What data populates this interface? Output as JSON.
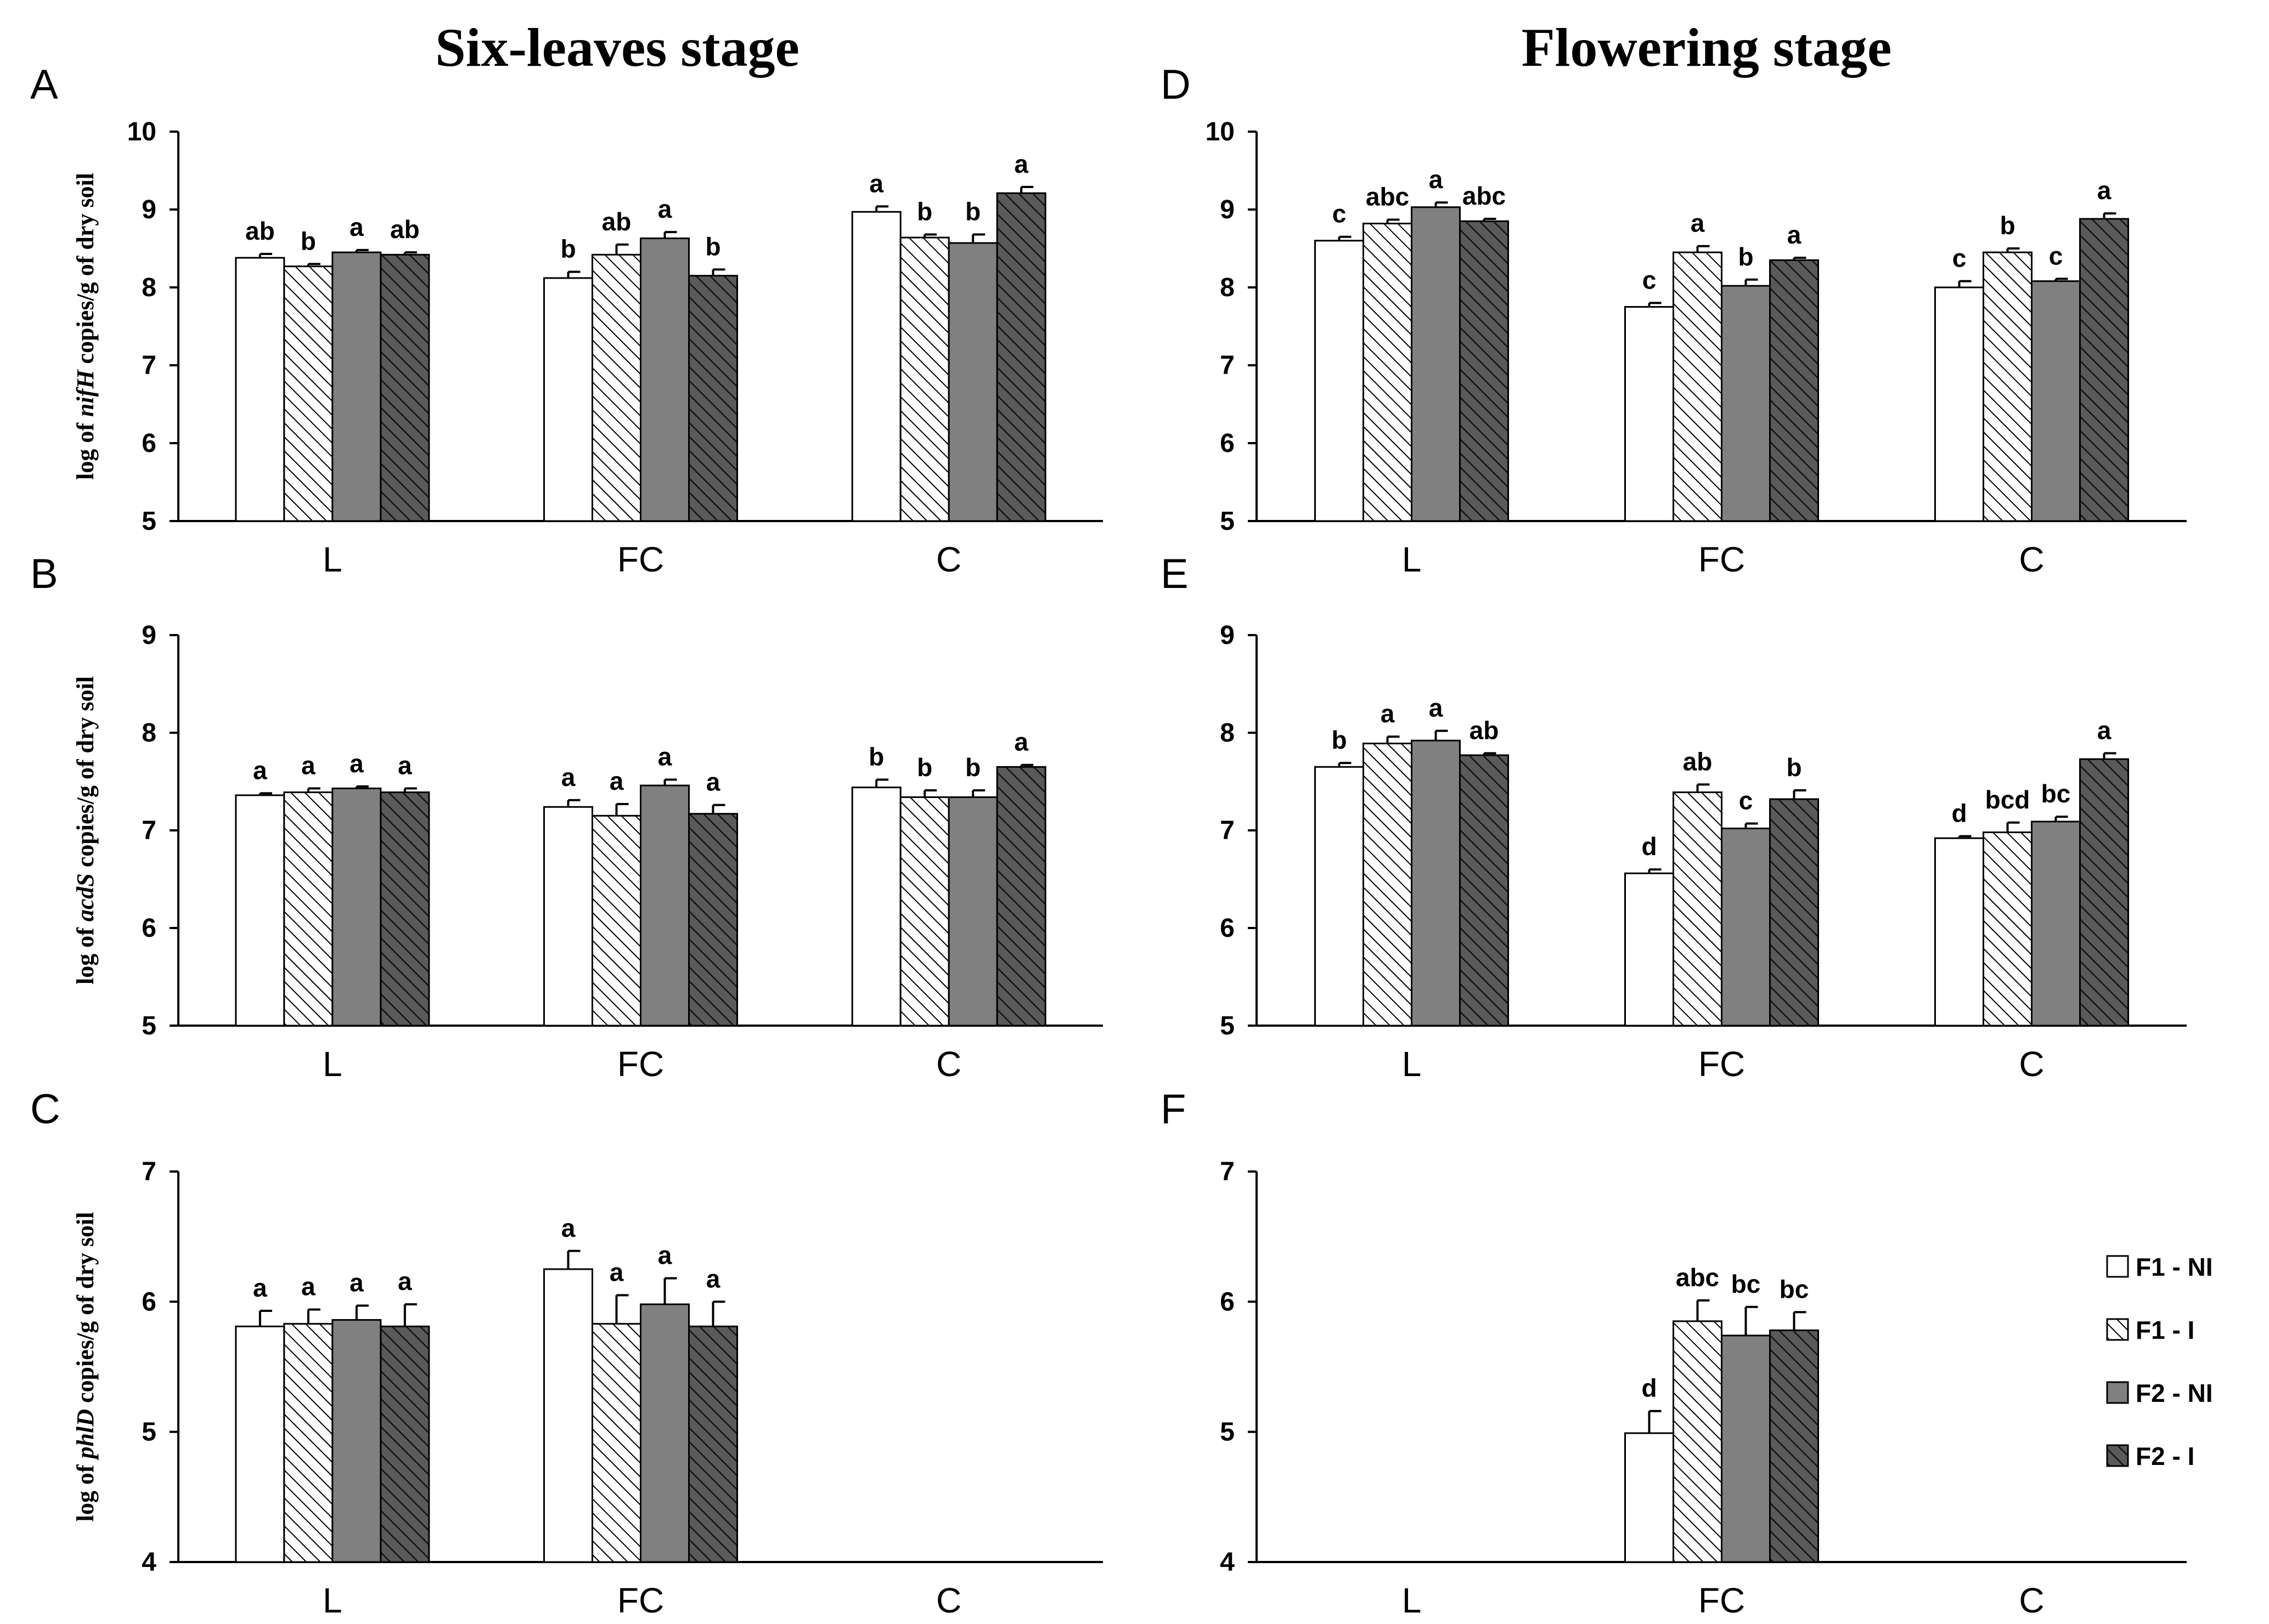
{
  "titles": {
    "left": "Six-leaves stage",
    "right": "Flowering stage"
  },
  "colors": {
    "F1-NI": "#ffffff",
    "F1-I": "#ffffff",
    "F2-NI": "#808080",
    "F2-I": "#5a5a5a",
    "axis": "#000000"
  },
  "legend": [
    {
      "key": "F1-NI",
      "label": "F1 - NI",
      "pattern": "open"
    },
    {
      "key": "F1-I",
      "label": "F1 - I",
      "pattern": "hatch-light"
    },
    {
      "key": "F2-NI",
      "label": "F2 - NI",
      "pattern": "solid-grey"
    },
    {
      "key": "F2-I",
      "label": "F2 - I",
      "pattern": "hatch-dark"
    }
  ],
  "chart_data": [
    {
      "panel": "A",
      "type": "bar",
      "ylabel_parts": [
        "log of ",
        "nifH",
        " copies/g of dry soil"
      ],
      "ylim": [
        5,
        10
      ],
      "yticks": [
        5,
        6,
        7,
        8,
        9,
        10
      ],
      "categories": [
        "L",
        "FC",
        "C"
      ],
      "series": [
        {
          "key": "F1-NI",
          "values": [
            8.38,
            8.12,
            8.97
          ],
          "errors": [
            0.05,
            0.08,
            0.07
          ],
          "labels": [
            "ab",
            "b",
            "a"
          ]
        },
        {
          "key": "F1-I",
          "values": [
            8.27,
            8.42,
            8.64
          ],
          "errors": [
            0.03,
            0.13,
            0.04
          ],
          "labels": [
            "b",
            "ab",
            "b"
          ]
        },
        {
          "key": "F2-NI",
          "values": [
            8.45,
            8.63,
            8.57
          ],
          "errors": [
            0.03,
            0.08,
            0.11
          ],
          "labels": [
            "a",
            "a",
            "b"
          ]
        },
        {
          "key": "F2-I",
          "values": [
            8.42,
            8.15,
            9.21
          ],
          "errors": [
            0.03,
            0.08,
            0.08
          ],
          "labels": [
            "ab",
            "b",
            "a"
          ]
        }
      ]
    },
    {
      "panel": "B",
      "type": "bar",
      "ylabel_parts": [
        "log of ",
        "acdS",
        " copies/g of dry soil"
      ],
      "ylim": [
        5,
        9
      ],
      "yticks": [
        5,
        6,
        7,
        8,
        9
      ],
      "categories": [
        "L",
        "FC",
        "C"
      ],
      "series": [
        {
          "key": "F1-NI",
          "values": [
            7.36,
            7.24,
            7.44
          ],
          "errors": [
            0.02,
            0.07,
            0.08
          ],
          "labels": [
            "a",
            "a",
            "b"
          ]
        },
        {
          "key": "F1-I",
          "values": [
            7.39,
            7.15,
            7.34
          ],
          "errors": [
            0.04,
            0.12,
            0.07
          ],
          "labels": [
            "a",
            "a",
            "b"
          ]
        },
        {
          "key": "F2-NI",
          "values": [
            7.43,
            7.46,
            7.34
          ],
          "errors": [
            0.02,
            0.06,
            0.07
          ],
          "labels": [
            "a",
            "a",
            "b"
          ]
        },
        {
          "key": "F2-I",
          "values": [
            7.39,
            7.17,
            7.65
          ],
          "errors": [
            0.04,
            0.09,
            0.02
          ],
          "labels": [
            "a",
            "a",
            "a"
          ]
        }
      ]
    },
    {
      "panel": "C",
      "type": "bar",
      "ylabel_parts": [
        "log of ",
        "phlD",
        " copies/g of dry soil"
      ],
      "ylim": [
        4,
        7
      ],
      "yticks": [
        4,
        5,
        6,
        7
      ],
      "categories": [
        "L",
        "FC",
        "C"
      ],
      "series": [
        {
          "key": "F1-NI",
          "values": [
            5.81,
            6.25,
            null
          ],
          "errors": [
            0.12,
            0.14,
            null
          ],
          "labels": [
            "a",
            "a",
            ""
          ]
        },
        {
          "key": "F1-I",
          "values": [
            5.83,
            5.83,
            null
          ],
          "errors": [
            0.11,
            0.22,
            null
          ],
          "labels": [
            "a",
            "a",
            ""
          ]
        },
        {
          "key": "F2-NI",
          "values": [
            5.86,
            5.98,
            null
          ],
          "errors": [
            0.11,
            0.2,
            null
          ],
          "labels": [
            "a",
            "a",
            ""
          ]
        },
        {
          "key": "F2-I",
          "values": [
            5.81,
            5.81,
            null
          ],
          "errors": [
            0.17,
            0.19,
            null
          ],
          "labels": [
            "a",
            "a",
            ""
          ]
        }
      ]
    },
    {
      "panel": "D",
      "type": "bar",
      "ylim": [
        5,
        10
      ],
      "yticks": [
        5,
        6,
        7,
        8,
        9,
        10
      ],
      "categories": [
        "L",
        "FC",
        "C"
      ],
      "series": [
        {
          "key": "F1-NI",
          "values": [
            8.6,
            7.75,
            8.0
          ],
          "errors": [
            0.05,
            0.05,
            0.08
          ],
          "labels": [
            "c",
            "c",
            "c"
          ]
        },
        {
          "key": "F1-I",
          "values": [
            8.82,
            8.45,
            8.45
          ],
          "errors": [
            0.05,
            0.08,
            0.05
          ],
          "labels": [
            "abc",
            "a",
            "b"
          ]
        },
        {
          "key": "F2-NI",
          "values": [
            9.03,
            8.02,
            8.08
          ],
          "errors": [
            0.06,
            0.08,
            0.03
          ],
          "labels": [
            "a",
            "b",
            "c"
          ]
        },
        {
          "key": "F2-I",
          "values": [
            8.85,
            8.35,
            8.88
          ],
          "errors": [
            0.03,
            0.03,
            0.07
          ],
          "labels": [
            "abc",
            "a",
            "a"
          ]
        }
      ]
    },
    {
      "panel": "E",
      "type": "bar",
      "ylim": [
        5,
        9
      ],
      "yticks": [
        5,
        6,
        7,
        8,
        9
      ],
      "categories": [
        "L",
        "FC",
        "C"
      ],
      "series": [
        {
          "key": "F1-NI",
          "values": [
            7.65,
            6.56,
            6.92
          ],
          "errors": [
            0.04,
            0.04,
            0.02
          ],
          "labels": [
            "b",
            "d",
            "d"
          ]
        },
        {
          "key": "F1-I",
          "values": [
            7.89,
            7.39,
            6.98
          ],
          "errors": [
            0.07,
            0.08,
            0.1
          ],
          "labels": [
            "a",
            "ab",
            "bcd"
          ]
        },
        {
          "key": "F2-NI",
          "values": [
            7.92,
            7.02,
            7.09
          ],
          "errors": [
            0.1,
            0.05,
            0.05
          ],
          "labels": [
            "a",
            "c",
            "bc"
          ]
        },
        {
          "key": "F2-I",
          "values": [
            7.77,
            7.32,
            7.73
          ],
          "errors": [
            0.02,
            0.09,
            0.06
          ],
          "labels": [
            "ab",
            "b",
            "a"
          ]
        }
      ]
    },
    {
      "panel": "F",
      "type": "bar",
      "ylim": [
        4,
        7
      ],
      "yticks": [
        4,
        5,
        6,
        7
      ],
      "categories": [
        "L",
        "FC",
        "C"
      ],
      "series": [
        {
          "key": "F1-NI",
          "values": [
            null,
            4.99,
            null
          ],
          "errors": [
            null,
            0.17,
            null
          ],
          "labels": [
            "",
            "d",
            ""
          ]
        },
        {
          "key": "F1-I",
          "values": [
            null,
            5.85,
            null
          ],
          "errors": [
            null,
            0.16,
            null
          ],
          "labels": [
            "",
            "abc",
            ""
          ]
        },
        {
          "key": "F2-NI",
          "values": [
            null,
            5.74,
            null
          ],
          "errors": [
            null,
            0.22,
            null
          ],
          "labels": [
            "",
            "bc",
            ""
          ]
        },
        {
          "key": "F2-I",
          "values": [
            null,
            5.78,
            null
          ],
          "errors": [
            null,
            0.14,
            null
          ],
          "labels": [
            "",
            "bc",
            ""
          ]
        }
      ]
    }
  ]
}
